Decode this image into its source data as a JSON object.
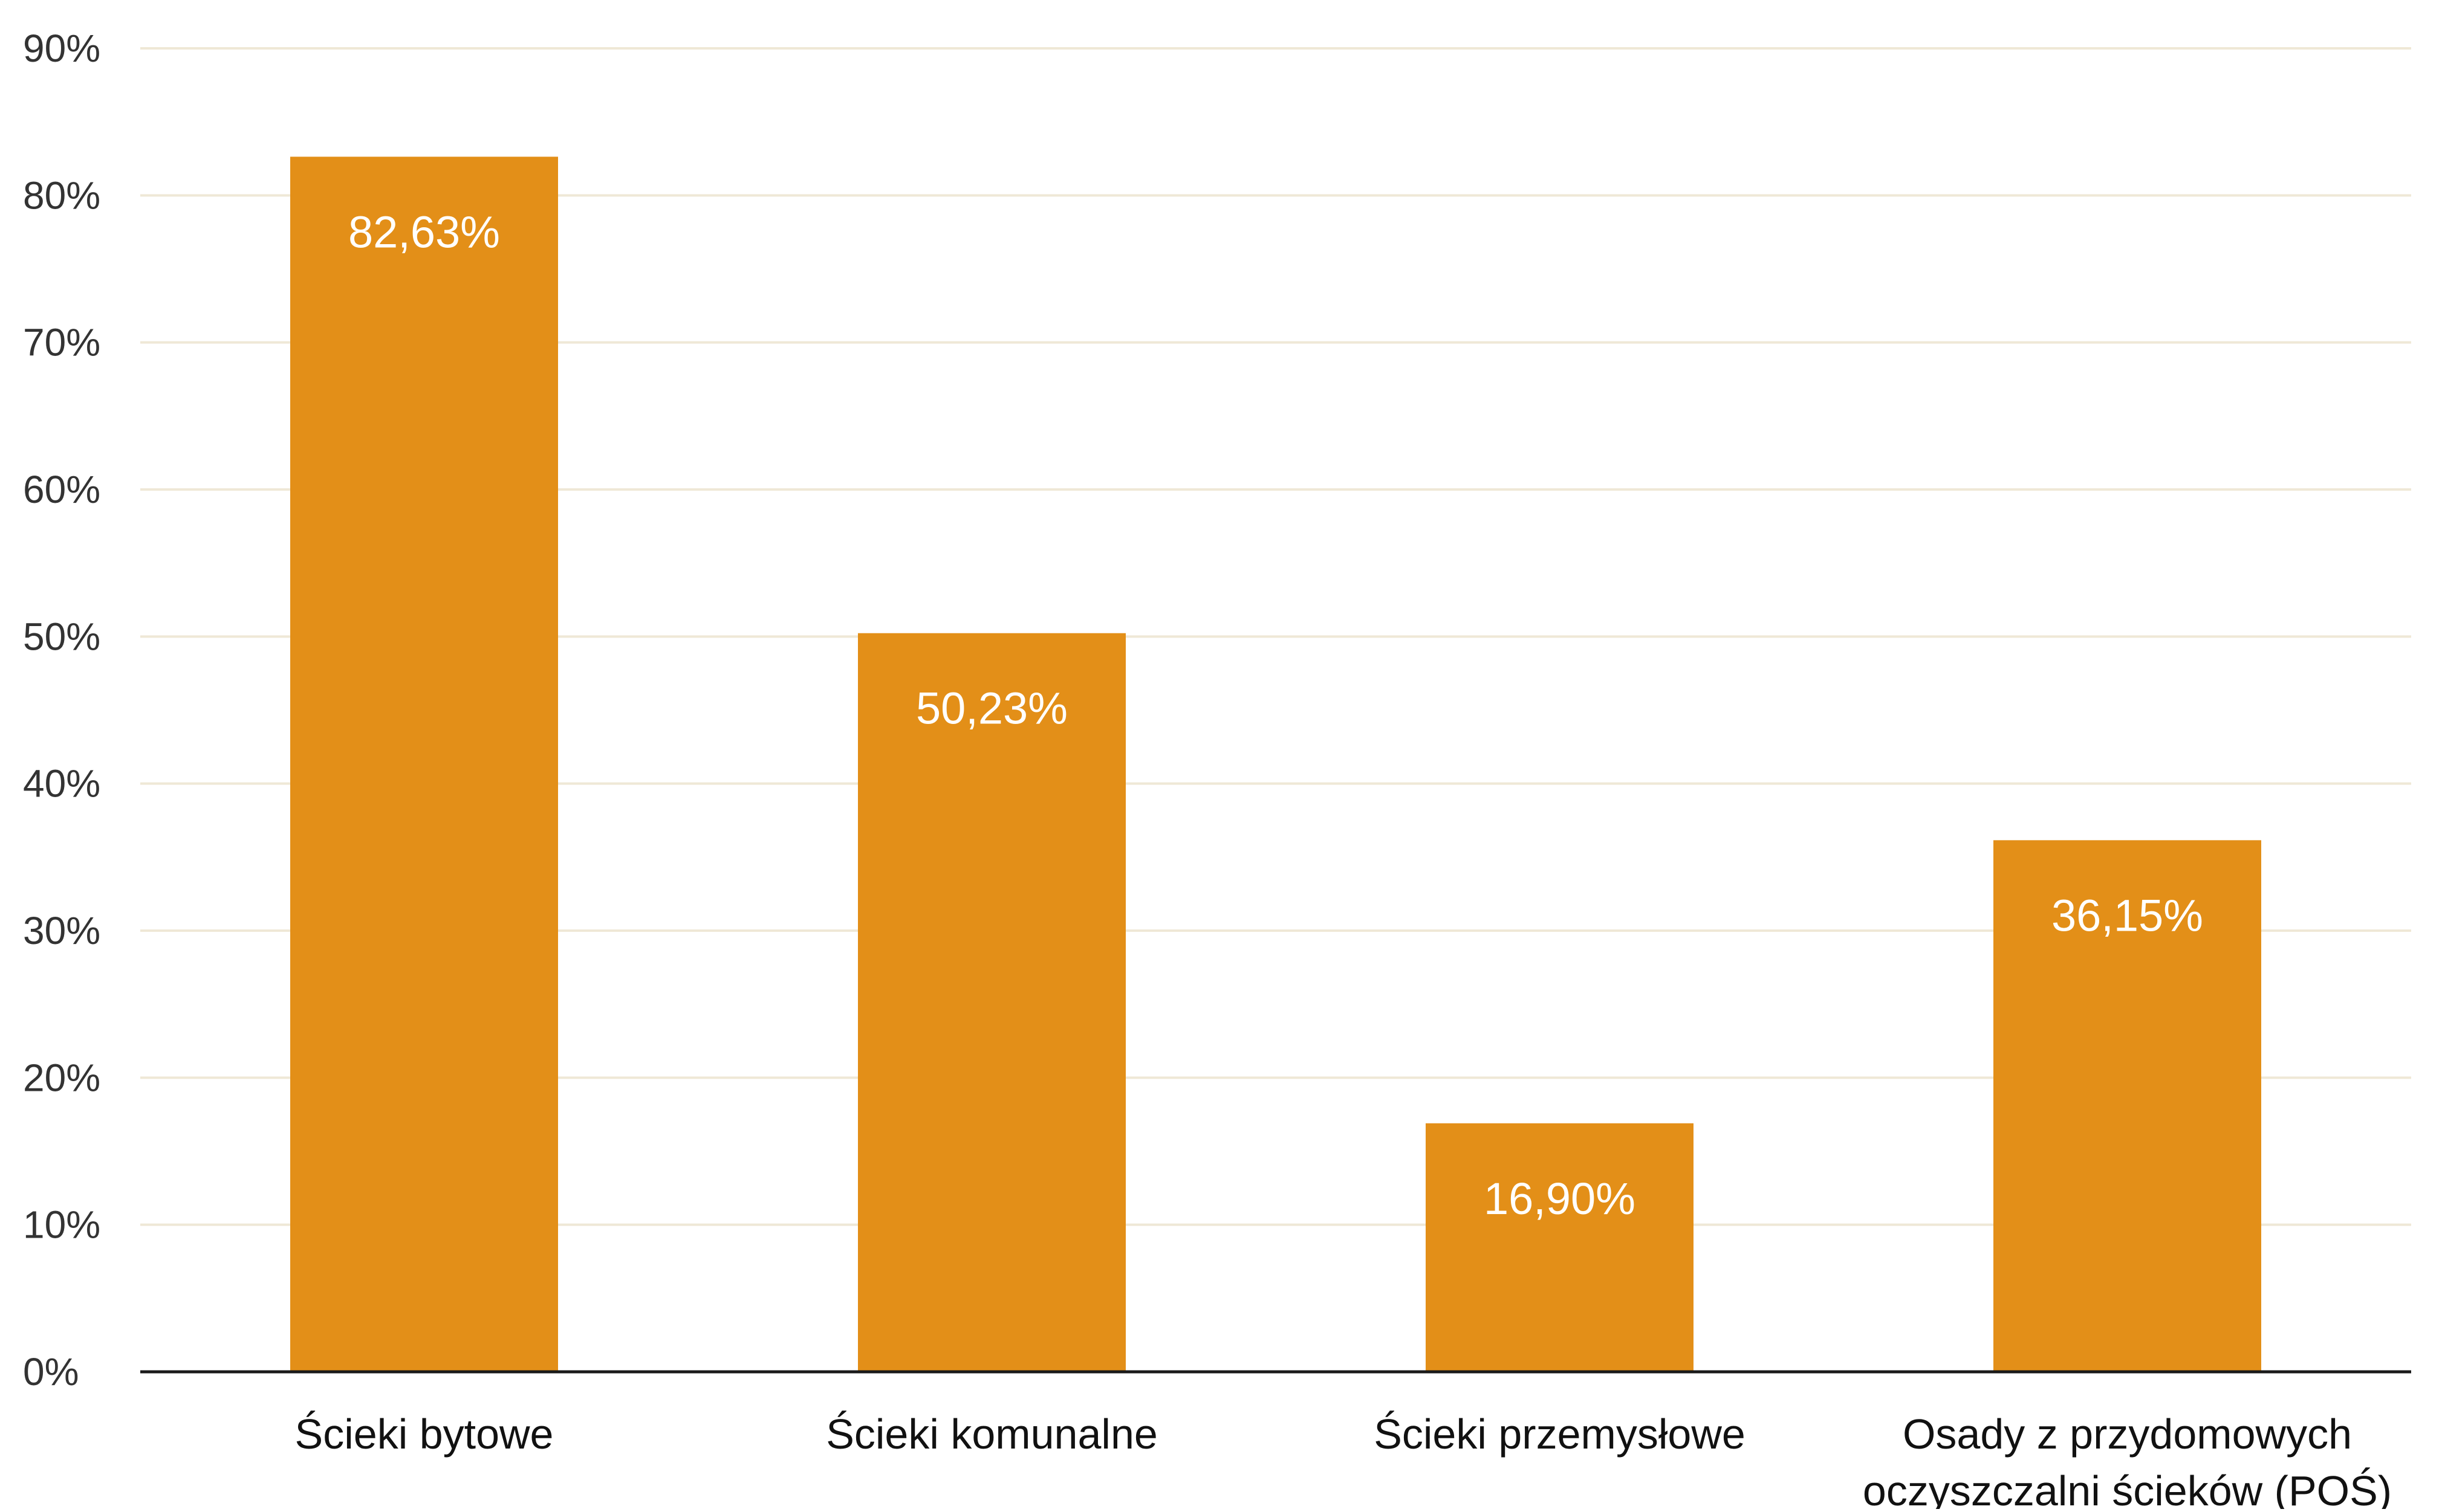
{
  "chart_data": {
    "type": "bar",
    "categories": [
      [
        "Ścieki bytowe"
      ],
      [
        "Ścieki komunalne"
      ],
      [
        "Ścieki przemysłowe"
      ],
      [
        "Osady z przydomowych",
        "oczyszczalni ścieków (POŚ)"
      ]
    ],
    "values": [
      82.63,
      50.23,
      16.9,
      36.15
    ],
    "data_labels": [
      "82,63%",
      "50,23%",
      "16,90%",
      "36,15%"
    ],
    "ylim": [
      0,
      90
    ],
    "yticks": [
      0,
      10,
      20,
      30,
      40,
      50,
      60,
      70,
      80,
      90
    ],
    "ytick_labels": [
      "0%",
      "10%",
      "20%",
      "30%",
      "40%",
      "50%",
      "60%",
      "70%",
      "80%",
      "90%"
    ],
    "grid": true,
    "legend": "none",
    "colors": {
      "bar": "#E38F18",
      "grid": "#EFE8D6",
      "axis": "#1a1a1a",
      "data_label": "#ffffff"
    }
  }
}
